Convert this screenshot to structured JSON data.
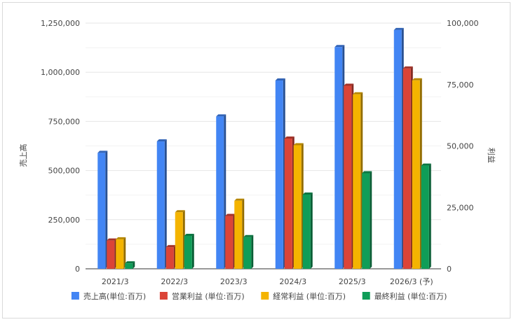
{
  "chart_data": {
    "type": "bar",
    "categories": [
      "2021/3",
      "2022/3",
      "2023/3",
      "2024/3",
      "2025/3",
      "2026/3 (予)"
    ],
    "y_left": {
      "label": "売上高",
      "ylim": [
        0,
        1250000
      ],
      "ticks": [
        0,
        250000,
        500000,
        750000,
        1000000,
        1250000
      ],
      "tick_labels": [
        "0",
        "250,000",
        "500,000",
        "750,000",
        "1,000,000",
        "1,250,000"
      ]
    },
    "y_right": {
      "label": "利益",
      "ylim": [
        0,
        100000
      ],
      "ticks": [
        0,
        25000,
        50000,
        75000,
        100000
      ],
      "tick_labels": [
        "0",
        "25,000",
        "50,000",
        "75,000",
        "100,000"
      ]
    },
    "series": [
      {
        "name": "売上高(単位:百万)",
        "axis": "left",
        "color": "#4285f4",
        "values": [
          590000,
          648000,
          775000,
          958000,
          1128000,
          1215000
        ]
      },
      {
        "name": "営業利益 (単位:百万)",
        "axis": "right",
        "color": "#db4437",
        "values": [
          11500,
          8800,
          21500,
          53000,
          74500,
          81500
        ]
      },
      {
        "name": "経常利益 (単位:百万)",
        "axis": "right",
        "color": "#f4b400",
        "values": [
          12000,
          23000,
          27700,
          50300,
          71000,
          76700
        ]
      },
      {
        "name": "最終利益 (単位:百万)",
        "axis": "right",
        "color": "#0f9d58",
        "values": [
          2200,
          13400,
          12900,
          30200,
          38900,
          42000
        ]
      }
    ],
    "grid": true,
    "legend_position": "bottom"
  }
}
